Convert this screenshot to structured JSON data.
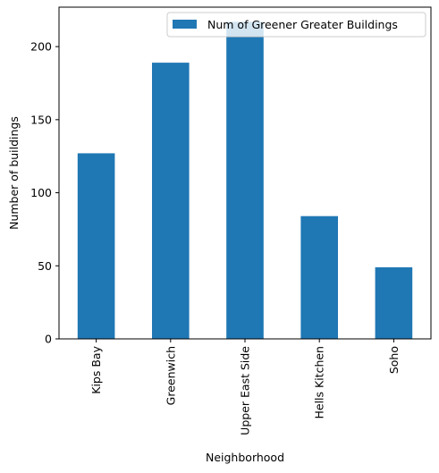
{
  "chart_data": {
    "type": "bar",
    "categories": [
      "Kips Bay",
      "Greenwich",
      "Upper East Side",
      "Hells Kitchen",
      "Soho"
    ],
    "series": [
      {
        "name": "Num of Greener Greater Buildings",
        "values": [
          127,
          189,
          217,
          84,
          49
        ],
        "color": "#1f77b4"
      }
    ],
    "xlabel": "Neighborhood",
    "ylabel": "Number of buildings",
    "ylim": [
      0,
      227
    ],
    "yticks": [
      0,
      50,
      100,
      150,
      200
    ],
    "ytick_labels": [
      "0",
      "50",
      "100",
      "150",
      "200"
    ],
    "legend": {
      "placement": "top-right"
    },
    "grid": false
  }
}
